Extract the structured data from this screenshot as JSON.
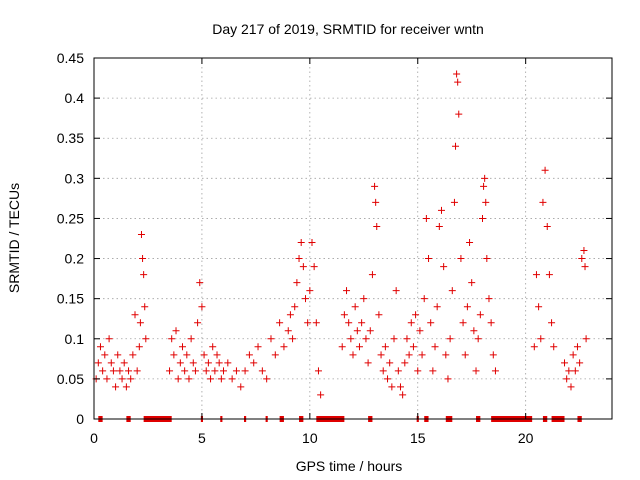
{
  "chart_data": {
    "type": "scatter",
    "title": "Day 217 of 2019, SRMTID for receiver wntn",
    "xlabel": "GPS time / hours",
    "ylabel": "SRMTID / TECUs",
    "xlim": [
      0,
      24
    ],
    "ylim": [
      0,
      0.45
    ],
    "xticks": [
      0,
      5,
      10,
      15,
      20
    ],
    "yticks": [
      0,
      0.05,
      0.1,
      0.15,
      0.2,
      0.25,
      0.3,
      0.35,
      0.4,
      0.45
    ],
    "ytick_labels": [
      "0",
      "0.05",
      "0.1",
      "0.15",
      "0.2",
      "0.25",
      "0.3",
      "0.35",
      "0.4",
      "0.45"
    ],
    "grid": true,
    "marker": "+",
    "color": "#e00000",
    "series": [
      {
        "name": "SRMTID",
        "points": [
          [
            0.1,
            0.05
          ],
          [
            0.2,
            0.07
          ],
          [
            0.3,
            0.09
          ],
          [
            0.4,
            0.06
          ],
          [
            0.5,
            0.08
          ],
          [
            0.6,
            0.05
          ],
          [
            0.7,
            0.1
          ],
          [
            0.8,
            0.07
          ],
          [
            0.9,
            0.06
          ],
          [
            1.0,
            0.04
          ],
          [
            1.1,
            0.08
          ],
          [
            1.2,
            0.06
          ],
          [
            1.3,
            0.05
          ],
          [
            1.4,
            0.07
          ],
          [
            1.5,
            0.04
          ],
          [
            1.6,
            0.06
          ],
          [
            1.7,
            0.05
          ],
          [
            1.8,
            0.08
          ],
          [
            1.9,
            0.13
          ],
          [
            2.0,
            0.06
          ],
          [
            2.1,
            0.09
          ],
          [
            2.15,
            0.12
          ],
          [
            2.2,
            0.23
          ],
          [
            2.25,
            0.2
          ],
          [
            2.3,
            0.18
          ],
          [
            2.35,
            0.14
          ],
          [
            2.4,
            0.1
          ],
          [
            3.5,
            0.06
          ],
          [
            3.6,
            0.1
          ],
          [
            3.7,
            0.08
          ],
          [
            3.8,
            0.11
          ],
          [
            3.9,
            0.05
          ],
          [
            4.0,
            0.07
          ],
          [
            4.1,
            0.09
          ],
          [
            4.2,
            0.06
          ],
          [
            4.3,
            0.08
          ],
          [
            4.4,
            0.05
          ],
          [
            4.5,
            0.1
          ],
          [
            4.6,
            0.07
          ],
          [
            4.7,
            0.06
          ],
          [
            4.8,
            0.12
          ],
          [
            4.9,
            0.17
          ],
          [
            5.0,
            0.14
          ],
          [
            5.1,
            0.08
          ],
          [
            5.2,
            0.06
          ],
          [
            5.3,
            0.07
          ],
          [
            5.4,
            0.05
          ],
          [
            5.5,
            0.09
          ],
          [
            5.6,
            0.06
          ],
          [
            5.7,
            0.08
          ],
          [
            5.8,
            0.07
          ],
          [
            5.9,
            0.05
          ],
          [
            6.0,
            0.06
          ],
          [
            6.2,
            0.07
          ],
          [
            6.4,
            0.05
          ],
          [
            6.6,
            0.06
          ],
          [
            6.8,
            0.04
          ],
          [
            7.0,
            0.06
          ],
          [
            7.2,
            0.08
          ],
          [
            7.4,
            0.07
          ],
          [
            7.6,
            0.09
          ],
          [
            7.8,
            0.06
          ],
          [
            8.0,
            0.05
          ],
          [
            8.2,
            0.1
          ],
          [
            8.4,
            0.08
          ],
          [
            8.6,
            0.12
          ],
          [
            8.8,
            0.09
          ],
          [
            9.0,
            0.11
          ],
          [
            9.1,
            0.13
          ],
          [
            9.2,
            0.1
          ],
          [
            9.3,
            0.14
          ],
          [
            9.4,
            0.17
          ],
          [
            9.5,
            0.2
          ],
          [
            9.6,
            0.22
          ],
          [
            9.7,
            0.19
          ],
          [
            9.8,
            0.15
          ],
          [
            9.9,
            0.12
          ],
          [
            10.0,
            0.16
          ],
          [
            10.1,
            0.22
          ],
          [
            10.2,
            0.19
          ],
          [
            10.3,
            0.12
          ],
          [
            10.4,
            0.06
          ],
          [
            10.5,
            0.03
          ],
          [
            11.5,
            0.09
          ],
          [
            11.6,
            0.13
          ],
          [
            11.7,
            0.16
          ],
          [
            11.8,
            0.12
          ],
          [
            11.9,
            0.1
          ],
          [
            12.0,
            0.08
          ],
          [
            12.1,
            0.14
          ],
          [
            12.2,
            0.11
          ],
          [
            12.3,
            0.09
          ],
          [
            12.4,
            0.12
          ],
          [
            12.5,
            0.15
          ],
          [
            12.6,
            0.1
          ],
          [
            12.7,
            0.07
          ],
          [
            12.8,
            0.11
          ],
          [
            12.9,
            0.18
          ],
          [
            13.0,
            0.29
          ],
          [
            13.05,
            0.27
          ],
          [
            13.1,
            0.24
          ],
          [
            13.2,
            0.13
          ],
          [
            13.3,
            0.08
          ],
          [
            13.4,
            0.06
          ],
          [
            13.5,
            0.09
          ],
          [
            13.6,
            0.05
          ],
          [
            13.7,
            0.07
          ],
          [
            13.8,
            0.04
          ],
          [
            13.9,
            0.1
          ],
          [
            14.0,
            0.16
          ],
          [
            14.1,
            0.06
          ],
          [
            14.2,
            0.04
          ],
          [
            14.3,
            0.03
          ],
          [
            14.4,
            0.07
          ],
          [
            14.5,
            0.1
          ],
          [
            14.6,
            0.08
          ],
          [
            14.7,
            0.12
          ],
          [
            14.8,
            0.09
          ],
          [
            14.9,
            0.13
          ],
          [
            15.0,
            0.06
          ],
          [
            15.1,
            0.11
          ],
          [
            15.2,
            0.08
          ],
          [
            15.3,
            0.15
          ],
          [
            15.4,
            0.25
          ],
          [
            15.5,
            0.2
          ],
          [
            15.6,
            0.12
          ],
          [
            15.7,
            0.06
          ],
          [
            15.8,
            0.09
          ],
          [
            15.9,
            0.14
          ],
          [
            16.0,
            0.24
          ],
          [
            16.1,
            0.26
          ],
          [
            16.2,
            0.19
          ],
          [
            16.3,
            0.08
          ],
          [
            16.4,
            0.05
          ],
          [
            16.5,
            0.1
          ],
          [
            16.6,
            0.16
          ],
          [
            16.7,
            0.27
          ],
          [
            16.75,
            0.34
          ],
          [
            16.8,
            0.43
          ],
          [
            16.85,
            0.42
          ],
          [
            16.9,
            0.38
          ],
          [
            17.0,
            0.2
          ],
          [
            17.1,
            0.12
          ],
          [
            17.2,
            0.08
          ],
          [
            17.3,
            0.14
          ],
          [
            17.4,
            0.22
          ],
          [
            17.5,
            0.17
          ],
          [
            17.6,
            0.11
          ],
          [
            17.7,
            0.06
          ],
          [
            17.8,
            0.1
          ],
          [
            17.9,
            0.13
          ],
          [
            18.0,
            0.25
          ],
          [
            18.05,
            0.29
          ],
          [
            18.1,
            0.3
          ],
          [
            18.15,
            0.27
          ],
          [
            18.2,
            0.2
          ],
          [
            18.3,
            0.15
          ],
          [
            18.4,
            0.12
          ],
          [
            18.5,
            0.08
          ],
          [
            18.6,
            0.06
          ],
          [
            20.4,
            0.09
          ],
          [
            20.5,
            0.18
          ],
          [
            20.6,
            0.14
          ],
          [
            20.7,
            0.1
          ],
          [
            20.8,
            0.27
          ],
          [
            20.9,
            0.31
          ],
          [
            21.0,
            0.24
          ],
          [
            21.1,
            0.18
          ],
          [
            21.2,
            0.12
          ],
          [
            21.3,
            0.09
          ],
          [
            21.8,
            0.07
          ],
          [
            21.9,
            0.05
          ],
          [
            22.0,
            0.06
          ],
          [
            22.1,
            0.04
          ],
          [
            22.2,
            0.08
          ],
          [
            22.3,
            0.06
          ],
          [
            22.4,
            0.09
          ],
          [
            22.5,
            0.07
          ],
          [
            22.6,
            0.2
          ],
          [
            22.7,
            0.21
          ],
          [
            22.75,
            0.19
          ],
          [
            22.8,
            0.1
          ]
        ]
      }
    ],
    "zero_segments": [
      [
        0.2,
        0.4
      ],
      [
        1.5,
        1.7
      ],
      [
        2.3,
        3.6
      ],
      [
        4.95,
        5.05
      ],
      [
        5.85,
        5.95
      ],
      [
        6.95,
        7.05
      ],
      [
        7.95,
        8.05
      ],
      [
        8.6,
        8.8
      ],
      [
        9.5,
        9.7
      ],
      [
        10.3,
        11.6
      ],
      [
        12.7,
        12.9
      ],
      [
        14.95,
        15.05
      ],
      [
        15.3,
        15.5
      ],
      [
        16.3,
        16.6
      ],
      [
        17.7,
        17.9
      ],
      [
        18.4,
        20.3
      ],
      [
        20.8,
        21.0
      ],
      [
        21.2,
        21.8
      ],
      [
        22.4,
        22.6
      ]
    ]
  }
}
